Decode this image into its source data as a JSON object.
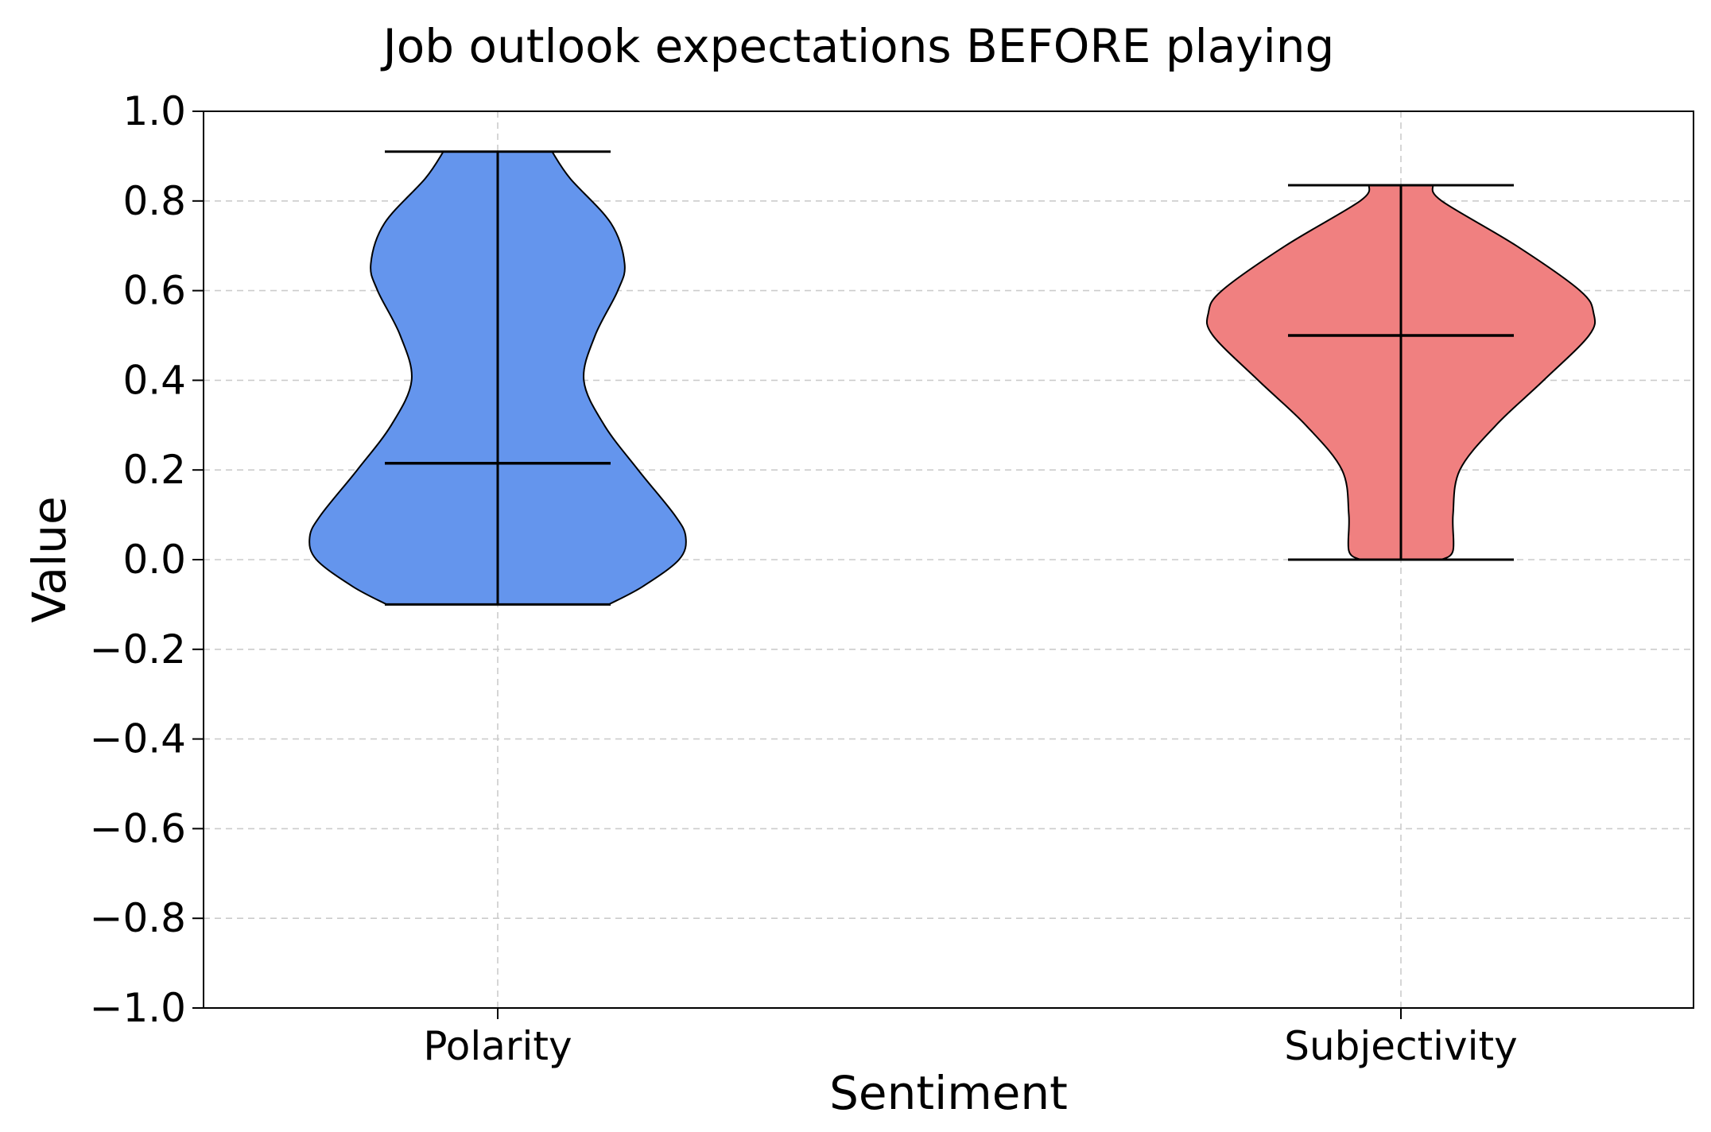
{
  "chart_data": {
    "type": "violin",
    "title": "Job outlook expectations BEFORE playing",
    "xlabel": "Sentiment",
    "ylabel": "Value",
    "ylim": [
      -1.0,
      1.0
    ],
    "yticks": [
      -1.0,
      -0.8,
      -0.6,
      -0.4,
      -0.2,
      0.0,
      0.2,
      0.4,
      0.6,
      0.8,
      1.0
    ],
    "ytick_labels": [
      "−1.0",
      "−0.8",
      "−0.6",
      "−0.4",
      "−0.2",
      "0.0",
      "0.2",
      "0.4",
      "0.6",
      "0.8",
      "1.0"
    ],
    "categories": [
      "Polarity",
      "Subjectivity"
    ],
    "grid": true,
    "series": [
      {
        "category": "Polarity",
        "color": "#6495ED",
        "min": -0.1,
        "max": 0.91,
        "median": 0.215,
        "density": [
          [
            -0.1,
            0.49
          ],
          [
            -0.06,
            0.64
          ],
          [
            0.0,
            0.8
          ],
          [
            0.05,
            0.83
          ],
          [
            0.1,
            0.78
          ],
          [
            0.2,
            0.62
          ],
          [
            0.3,
            0.47
          ],
          [
            0.4,
            0.38
          ],
          [
            0.5,
            0.43
          ],
          [
            0.6,
            0.53
          ],
          [
            0.66,
            0.56
          ],
          [
            0.75,
            0.5
          ],
          [
            0.85,
            0.32
          ],
          [
            0.91,
            0.24
          ]
        ]
      },
      {
        "category": "Subjectivity",
        "color": "#F08080",
        "min": 0.0,
        "max": 0.835,
        "median": 0.5,
        "density": [
          [
            0.0,
            0.18
          ],
          [
            0.02,
            0.23
          ],
          [
            0.1,
            0.23
          ],
          [
            0.2,
            0.26
          ],
          [
            0.3,
            0.42
          ],
          [
            0.4,
            0.63
          ],
          [
            0.5,
            0.83
          ],
          [
            0.55,
            0.85
          ],
          [
            0.6,
            0.79
          ],
          [
            0.7,
            0.51
          ],
          [
            0.8,
            0.18
          ],
          [
            0.835,
            0.14
          ]
        ]
      }
    ]
  }
}
